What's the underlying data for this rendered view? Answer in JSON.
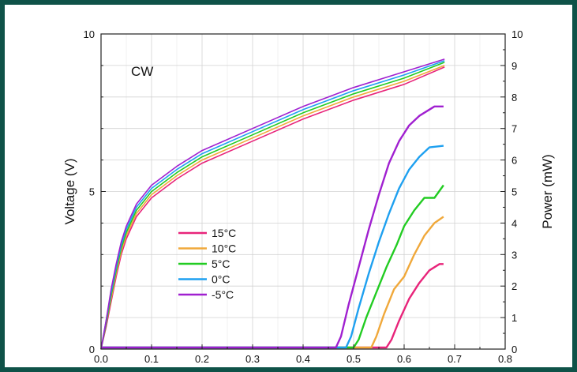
{
  "chart_data": {
    "type": "line",
    "annotation": "CW",
    "x_axis": {
      "min": 0,
      "max": 0.8,
      "ticks": [
        "0.0",
        "0.1",
        "0.2",
        "0.3",
        "0.4",
        "0.5",
        "0.6",
        "0.7",
        "0.8"
      ]
    },
    "y_left": {
      "label": "Voltage (V)",
      "min": 0,
      "max": 10,
      "ticks": [
        "0",
        "5",
        "10"
      ]
    },
    "y_right": {
      "label": "Power (mW)",
      "min": 0,
      "max": 10,
      "ticks": [
        "0",
        "1",
        "2",
        "3",
        "4",
        "5",
        "6",
        "7",
        "8",
        "9",
        "10"
      ]
    },
    "grid": true,
    "legend_position": "center-left",
    "series": [
      {
        "name": "15°C",
        "color": "#e8247a",
        "voltage": [
          [
            0,
            0
          ],
          [
            0.01,
            0.7
          ],
          [
            0.02,
            1.5
          ],
          [
            0.03,
            2.3
          ],
          [
            0.04,
            3.0
          ],
          [
            0.05,
            3.5
          ],
          [
            0.07,
            4.2
          ],
          [
            0.1,
            4.8
          ],
          [
            0.15,
            5.4
          ],
          [
            0.2,
            5.9
          ],
          [
            0.3,
            6.6
          ],
          [
            0.4,
            7.3
          ],
          [
            0.5,
            7.9
          ],
          [
            0.6,
            8.4
          ],
          [
            0.68,
            8.95
          ]
        ],
        "power": [
          [
            0,
            0.05
          ],
          [
            0.1,
            0.05
          ],
          [
            0.2,
            0.05
          ],
          [
            0.3,
            0.05
          ],
          [
            0.4,
            0.05
          ],
          [
            0.5,
            0.05
          ],
          [
            0.565,
            0.05
          ],
          [
            0.575,
            0.3
          ],
          [
            0.59,
            0.9
          ],
          [
            0.61,
            1.6
          ],
          [
            0.63,
            2.1
          ],
          [
            0.65,
            2.5
          ],
          [
            0.67,
            2.7
          ],
          [
            0.678,
            2.7
          ]
        ]
      },
      {
        "name": "10°C",
        "color": "#f0a83a",
        "voltage": [
          [
            0,
            0
          ],
          [
            0.01,
            0.8
          ],
          [
            0.02,
            1.6
          ],
          [
            0.03,
            2.4
          ],
          [
            0.04,
            3.1
          ],
          [
            0.05,
            3.6
          ],
          [
            0.07,
            4.3
          ],
          [
            0.1,
            4.9
          ],
          [
            0.15,
            5.5
          ],
          [
            0.2,
            6.0
          ],
          [
            0.3,
            6.7
          ],
          [
            0.4,
            7.4
          ],
          [
            0.5,
            8.0
          ],
          [
            0.6,
            8.5
          ],
          [
            0.68,
            9.0
          ]
        ],
        "power": [
          [
            0,
            0.05
          ],
          [
            0.1,
            0.05
          ],
          [
            0.2,
            0.05
          ],
          [
            0.3,
            0.05
          ],
          [
            0.4,
            0.05
          ],
          [
            0.5,
            0.05
          ],
          [
            0.535,
            0.05
          ],
          [
            0.545,
            0.4
          ],
          [
            0.56,
            1.1
          ],
          [
            0.58,
            1.9
          ],
          [
            0.6,
            2.3
          ],
          [
            0.62,
            3.0
          ],
          [
            0.64,
            3.6
          ],
          [
            0.66,
            4.0
          ],
          [
            0.678,
            4.2
          ]
        ]
      },
      {
        "name": "5°C",
        "color": "#22cc22",
        "voltage": [
          [
            0,
            0
          ],
          [
            0.01,
            0.8
          ],
          [
            0.02,
            1.7
          ],
          [
            0.03,
            2.5
          ],
          [
            0.04,
            3.2
          ],
          [
            0.05,
            3.7
          ],
          [
            0.07,
            4.4
          ],
          [
            0.1,
            5.0
          ],
          [
            0.15,
            5.6
          ],
          [
            0.2,
            6.1
          ],
          [
            0.3,
            6.8
          ],
          [
            0.4,
            7.5
          ],
          [
            0.5,
            8.1
          ],
          [
            0.6,
            8.6
          ],
          [
            0.68,
            9.1
          ]
        ],
        "power": [
          [
            0,
            0.05
          ],
          [
            0.1,
            0.05
          ],
          [
            0.2,
            0.05
          ],
          [
            0.3,
            0.05
          ],
          [
            0.4,
            0.05
          ],
          [
            0.5,
            0.05
          ],
          [
            0.51,
            0.3
          ],
          [
            0.525,
            1.0
          ],
          [
            0.545,
            1.8
          ],
          [
            0.565,
            2.6
          ],
          [
            0.585,
            3.3
          ],
          [
            0.6,
            3.9
          ],
          [
            0.62,
            4.4
          ],
          [
            0.64,
            4.8
          ],
          [
            0.66,
            4.8
          ],
          [
            0.678,
            5.2
          ]
        ]
      },
      {
        "name": "0°C",
        "color": "#1ea0f0",
        "voltage": [
          [
            0,
            0
          ],
          [
            0.01,
            0.9
          ],
          [
            0.02,
            1.8
          ],
          [
            0.03,
            2.6
          ],
          [
            0.04,
            3.3
          ],
          [
            0.05,
            3.8
          ],
          [
            0.07,
            4.5
          ],
          [
            0.1,
            5.1
          ],
          [
            0.15,
            5.7
          ],
          [
            0.2,
            6.2
          ],
          [
            0.3,
            6.9
          ],
          [
            0.4,
            7.6
          ],
          [
            0.5,
            8.2
          ],
          [
            0.6,
            8.7
          ],
          [
            0.68,
            9.15
          ]
        ],
        "power": [
          [
            0,
            0.05
          ],
          [
            0.1,
            0.05
          ],
          [
            0.2,
            0.05
          ],
          [
            0.3,
            0.05
          ],
          [
            0.4,
            0.05
          ],
          [
            0.485,
            0.05
          ],
          [
            0.495,
            0.4
          ],
          [
            0.51,
            1.3
          ],
          [
            0.53,
            2.4
          ],
          [
            0.55,
            3.4
          ],
          [
            0.57,
            4.3
          ],
          [
            0.59,
            5.1
          ],
          [
            0.61,
            5.7
          ],
          [
            0.63,
            6.1
          ],
          [
            0.65,
            6.4
          ],
          [
            0.678,
            6.45
          ]
        ]
      },
      {
        "name": "-5°C",
        "color": "#a020d0",
        "voltage": [
          [
            0,
            0
          ],
          [
            0.01,
            0.9
          ],
          [
            0.02,
            1.9
          ],
          [
            0.03,
            2.7
          ],
          [
            0.04,
            3.4
          ],
          [
            0.05,
            3.9
          ],
          [
            0.07,
            4.6
          ],
          [
            0.1,
            5.2
          ],
          [
            0.15,
            5.8
          ],
          [
            0.2,
            6.3
          ],
          [
            0.3,
            7.0
          ],
          [
            0.4,
            7.7
          ],
          [
            0.5,
            8.3
          ],
          [
            0.6,
            8.8
          ],
          [
            0.68,
            9.2
          ]
        ],
        "power": [
          [
            0,
            0.05
          ],
          [
            0.1,
            0.05
          ],
          [
            0.2,
            0.05
          ],
          [
            0.3,
            0.05
          ],
          [
            0.4,
            0.05
          ],
          [
            0.465,
            0.05
          ],
          [
            0.475,
            0.4
          ],
          [
            0.49,
            1.4
          ],
          [
            0.51,
            2.6
          ],
          [
            0.53,
            3.8
          ],
          [
            0.55,
            4.9
          ],
          [
            0.57,
            5.9
          ],
          [
            0.59,
            6.6
          ],
          [
            0.61,
            7.1
          ],
          [
            0.63,
            7.4
          ],
          [
            0.66,
            7.7
          ],
          [
            0.678,
            7.7
          ]
        ]
      }
    ]
  }
}
